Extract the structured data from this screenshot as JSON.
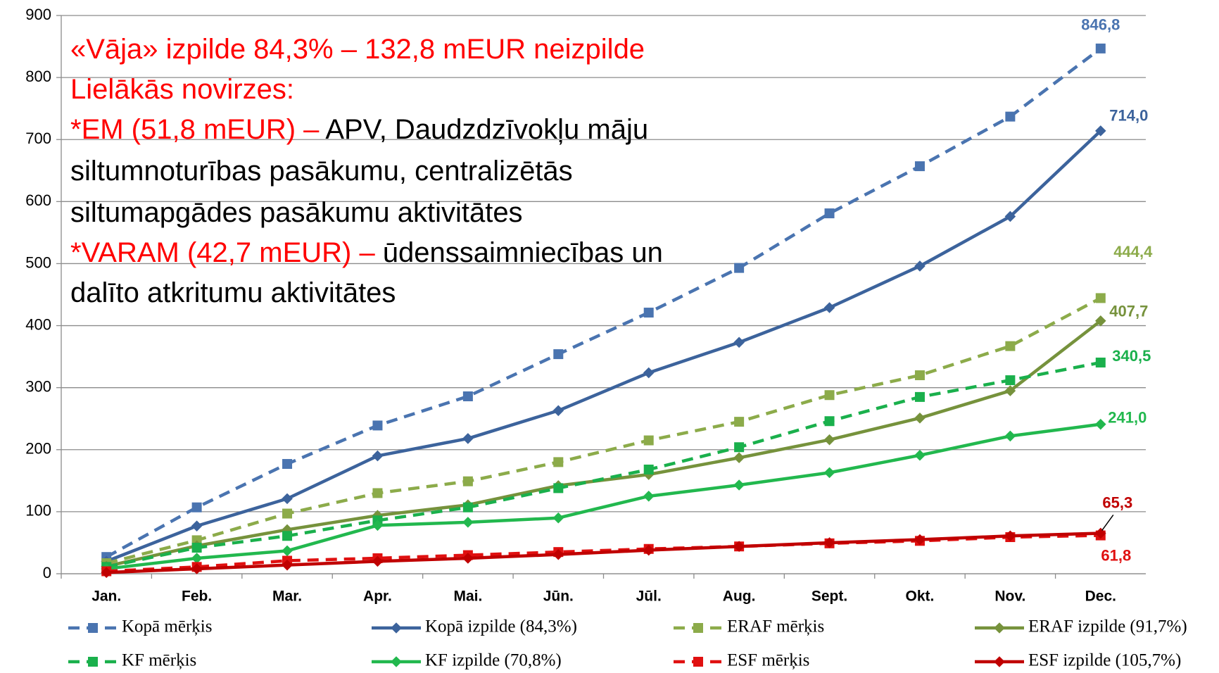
{
  "chart_data": {
    "type": "line",
    "categories": [
      "Jan.",
      "Feb.",
      "Mar.",
      "Apr.",
      "Mai.",
      "Jūn.",
      "Jūl.",
      "Aug.",
      "Sept.",
      "Okt.",
      "Nov.",
      "Dec."
    ],
    "ylim": [
      0,
      900
    ],
    "yticks": [
      0,
      100,
      200,
      300,
      400,
      500,
      600,
      700,
      800,
      900
    ],
    "grid": true,
    "legend": "bottom",
    "series": [
      {
        "name": "Kopā mērķis",
        "color": "#4a74b0",
        "dash": true,
        "marker": "square",
        "values": [
          27,
          107,
          177,
          239,
          286,
          354,
          421,
          493,
          581,
          657,
          737,
          846.8
        ],
        "value_labels": [
          null,
          null,
          null,
          null,
          null,
          null,
          null,
          null,
          null,
          null,
          null,
          "846,8"
        ]
      },
      {
        "name": "Kopā izpilde (84,3%)",
        "color": "#3c639c",
        "dash": false,
        "marker": "diamond",
        "values": [
          20,
          77,
          121,
          190,
          218,
          263,
          324,
          373,
          429,
          496,
          576,
          714.0
        ],
        "value_labels": [
          null,
          null,
          null,
          null,
          null,
          null,
          null,
          null,
          null,
          null,
          null,
          "714,0"
        ]
      },
      {
        "name": "ERAF mērķis",
        "color": "#8cab4a",
        "dash": true,
        "marker": "square",
        "values": [
          17,
          54,
          97,
          130,
          149,
          180,
          215,
          245,
          288,
          320,
          367,
          444.4
        ],
        "value_labels": [
          null,
          null,
          null,
          null,
          null,
          null,
          null,
          null,
          null,
          null,
          null,
          "444,4"
        ]
      },
      {
        "name": "ERAF izpilde (91,7%)",
        "color": "#76923c",
        "dash": false,
        "marker": "diamond",
        "values": [
          12,
          45,
          71,
          94,
          111,
          142,
          160,
          187,
          216,
          251,
          295,
          407.7
        ],
        "value_labels": [
          null,
          null,
          null,
          null,
          null,
          null,
          null,
          null,
          null,
          null,
          null,
          "407,7"
        ]
      },
      {
        "name": "KF mērķis",
        "color": "#1ab04c",
        "dash": true,
        "marker": "square",
        "values": [
          11,
          42,
          61,
          86,
          107,
          138,
          168,
          204,
          246,
          285,
          312,
          340.5
        ],
        "value_labels": [
          null,
          null,
          null,
          null,
          null,
          null,
          null,
          null,
          null,
          null,
          null,
          "340,5"
        ]
      },
      {
        "name": "KF izpilde (70,8%)",
        "color": "#22b84e",
        "dash": false,
        "marker": "diamond",
        "values": [
          8,
          25,
          37,
          78,
          83,
          90,
          125,
          143,
          163,
          191,
          222,
          241.0
        ],
        "value_labels": [
          null,
          null,
          null,
          null,
          null,
          null,
          null,
          null,
          null,
          null,
          null,
          "241,0"
        ]
      },
      {
        "name": "ESF mērķis",
        "color": "#e01010",
        "dash": true,
        "marker": "square",
        "values": [
          4,
          11,
          21,
          25,
          30,
          35,
          40,
          44,
          49,
          53,
          59,
          61.8
        ],
        "value_labels": [
          null,
          null,
          null,
          null,
          null,
          null,
          null,
          null,
          null,
          null,
          null,
          "61,8"
        ]
      },
      {
        "name": "ESF izpilde (105,7%)",
        "color": "#c00000",
        "dash": false,
        "marker": "diamond",
        "values": [
          2,
          8,
          14,
          20,
          25,
          31,
          38,
          44,
          50,
          55,
          61,
          65.3
        ],
        "value_labels": [
          null,
          null,
          null,
          null,
          null,
          null,
          null,
          null,
          null,
          null,
          null,
          "65,3"
        ]
      }
    ],
    "annotation": [
      [
        {
          "text": "«Vāja» izpilde 84,3% – 132,8 mEUR neizpilde",
          "color": "#ff0000"
        }
      ],
      [
        {
          "text": "Lielākās novirzes:",
          "color": "#ff0000"
        }
      ],
      [
        {
          "text": "*EM (51,8 mEUR) – ",
          "color": "#ff0000"
        },
        {
          "text": "APV, Daudzdzīvokļu māju",
          "color": "#000000"
        }
      ],
      [
        {
          "text": "siltumnoturības pasākumu, centralizētās",
          "color": "#000000"
        }
      ],
      [
        {
          "text": "siltumapgādes pasākumu aktivitātes",
          "color": "#000000"
        }
      ],
      [
        {
          "text": "*VARAM (42,7 mEUR) – ",
          "color": "#ff0000"
        },
        {
          "text": "ūdenssaimniecības un",
          "color": "#000000"
        }
      ],
      [
        {
          "text": "dalīto atkritumu aktivitātes",
          "color": "#000000"
        }
      ]
    ]
  }
}
